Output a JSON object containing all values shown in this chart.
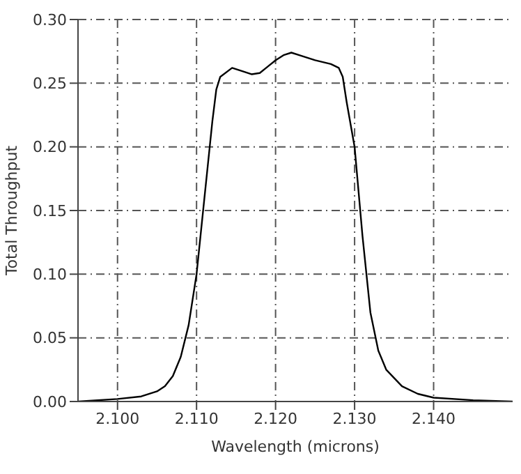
{
  "chart_data": {
    "type": "line",
    "xlabel": "Wavelength (microns)",
    "ylabel": "Total Throughput",
    "x": [
      2.095,
      2.1,
      2.103,
      2.105,
      2.106,
      2.107,
      2.108,
      2.109,
      2.11,
      2.111,
      2.112,
      2.1125,
      2.113,
      2.1145,
      2.116,
      2.117,
      2.118,
      2.119,
      2.12,
      2.121,
      2.122,
      2.123,
      2.125,
      2.127,
      2.128,
      2.1285,
      2.129,
      2.13,
      2.131,
      2.132,
      2.133,
      2.134,
      2.136,
      2.138,
      2.14,
      2.145,
      2.15
    ],
    "series": [
      {
        "color": "#000000",
        "values": [
          0.0,
          0.002,
          0.004,
          0.008,
          0.012,
          0.02,
          0.035,
          0.06,
          0.1,
          0.16,
          0.22,
          0.245,
          0.255,
          0.262,
          0.259,
          0.257,
          0.258,
          0.263,
          0.268,
          0.272,
          0.274,
          0.272,
          0.268,
          0.265,
          0.262,
          0.255,
          0.235,
          0.2,
          0.13,
          0.07,
          0.04,
          0.025,
          0.012,
          0.006,
          0.003,
          0.001,
          0.0
        ]
      }
    ],
    "xlim": [
      2.095,
      2.15
    ],
    "xticks": [
      {
        "value": 2.1,
        "label": "2.100"
      },
      {
        "value": 2.11,
        "label": "2.110"
      },
      {
        "value": 2.12,
        "label": "2.120"
      },
      {
        "value": 2.13,
        "label": "2.130"
      },
      {
        "value": 2.14,
        "label": "2.140"
      }
    ],
    "ylim": [
      0,
      0.3
    ],
    "yticks": [
      {
        "value": 0,
        "label": "0.00"
      },
      {
        "value": 0.05,
        "label": "0.05"
      },
      {
        "value": 0.1,
        "label": "0.10"
      },
      {
        "value": 0.15,
        "label": "0.15"
      },
      {
        "value": 0.2,
        "label": "0.20"
      },
      {
        "value": 0.25,
        "label": "0.25"
      },
      {
        "value": 0.3,
        "label": "0.30"
      }
    ],
    "grid": true,
    "marker": "none",
    "line_style": "solid"
  }
}
